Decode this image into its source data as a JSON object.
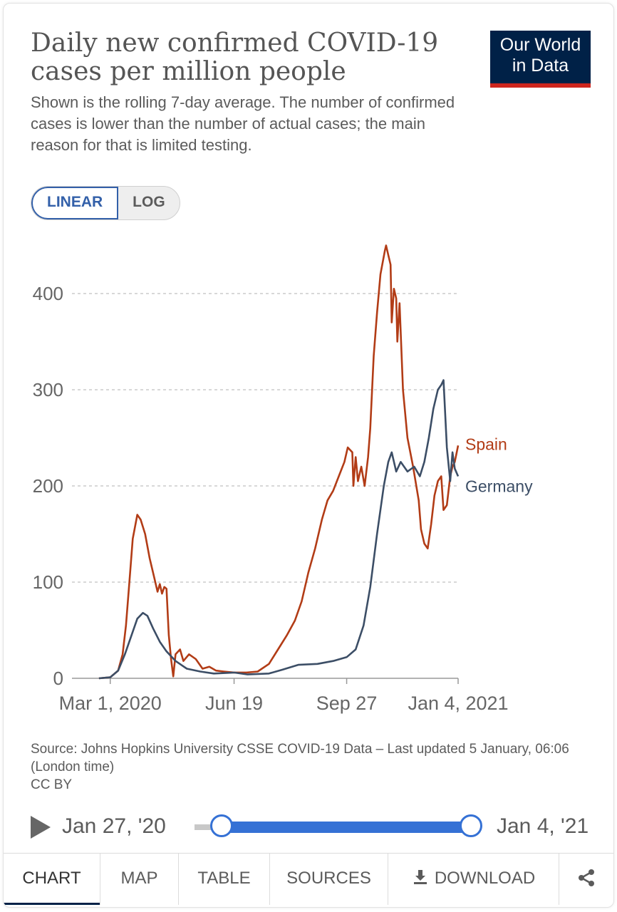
{
  "header": {
    "title": "Daily new confirmed COVID-19 cases per million people",
    "subtitle": "Shown is the rolling 7-day average. The number of confirmed cases is lower than the number of actual cases; the main reason for that is limited testing.",
    "logo_line1": "Our World",
    "logo_line2": "in Data"
  },
  "scale_toggle": {
    "linear": "LINEAR",
    "log": "LOG",
    "selected": "LINEAR"
  },
  "chart_data": {
    "type": "line",
    "title": "Daily new confirmed COVID-19 cases per million people",
    "xlabel": "",
    "ylabel": "",
    "y_scale": "linear",
    "ylim": [
      0,
      450
    ],
    "yticks": [
      0,
      100,
      200,
      300,
      400
    ],
    "ytick_labels": [
      "0",
      "100",
      "200",
      "300",
      "400"
    ],
    "xlim": [
      "2020-01-27",
      "2021-01-04"
    ],
    "xticks": [
      "2020-03-01",
      "2020-06-19",
      "2020-09-27",
      "2021-01-04"
    ],
    "xtick_labels": [
      "Mar 1, 2020",
      "Jun 19",
      "Sep 27",
      "Jan 4, 2021"
    ],
    "grid": "horizontal dashed",
    "legend": "inline labels at right end of lines",
    "series": [
      {
        "name": "Spain",
        "color": "#b23c16",
        "points": [
          [
            "2020-02-20",
            0
          ],
          [
            "2020-03-01",
            1
          ],
          [
            "2020-03-08",
            8
          ],
          [
            "2020-03-12",
            25
          ],
          [
            "2020-03-15",
            55
          ],
          [
            "2020-03-18",
            100
          ],
          [
            "2020-03-21",
            145
          ],
          [
            "2020-03-25",
            170
          ],
          [
            "2020-03-28",
            165
          ],
          [
            "2020-04-01",
            150
          ],
          [
            "2020-04-05",
            125
          ],
          [
            "2020-04-09",
            105
          ],
          [
            "2020-04-12",
            90
          ],
          [
            "2020-04-14",
            98
          ],
          [
            "2020-04-16",
            88
          ],
          [
            "2020-04-18",
            95
          ],
          [
            "2020-04-20",
            93
          ],
          [
            "2020-04-22",
            45
          ],
          [
            "2020-04-24",
            20
          ],
          [
            "2020-04-26",
            2
          ],
          [
            "2020-04-28",
            25
          ],
          [
            "2020-05-02",
            30
          ],
          [
            "2020-05-05",
            18
          ],
          [
            "2020-05-10",
            25
          ],
          [
            "2020-05-16",
            20
          ],
          [
            "2020-05-22",
            10
          ],
          [
            "2020-05-28",
            12
          ],
          [
            "2020-06-03",
            8
          ],
          [
            "2020-06-10",
            7
          ],
          [
            "2020-06-19",
            6
          ],
          [
            "2020-06-30",
            6
          ],
          [
            "2020-07-10",
            7
          ],
          [
            "2020-07-20",
            15
          ],
          [
            "2020-07-28",
            30
          ],
          [
            "2020-08-05",
            45
          ],
          [
            "2020-08-12",
            60
          ],
          [
            "2020-08-18",
            80
          ],
          [
            "2020-08-24",
            110
          ],
          [
            "2020-08-30",
            135
          ],
          [
            "2020-09-05",
            165
          ],
          [
            "2020-09-10",
            185
          ],
          [
            "2020-09-15",
            195
          ],
          [
            "2020-09-20",
            210
          ],
          [
            "2020-09-25",
            225
          ],
          [
            "2020-09-28",
            240
          ],
          [
            "2020-10-02",
            235
          ],
          [
            "2020-10-03",
            200
          ],
          [
            "2020-10-05",
            230
          ],
          [
            "2020-10-07",
            205
          ],
          [
            "2020-10-10",
            220
          ],
          [
            "2020-10-13",
            200
          ],
          [
            "2020-10-16",
            230
          ],
          [
            "2020-10-18",
            260
          ],
          [
            "2020-10-21",
            335
          ],
          [
            "2020-10-24",
            380
          ],
          [
            "2020-10-27",
            420
          ],
          [
            "2020-10-31",
            445
          ],
          [
            "2020-11-01",
            450
          ],
          [
            "2020-11-03",
            440
          ],
          [
            "2020-11-05",
            430
          ],
          [
            "2020-11-06",
            370
          ],
          [
            "2020-11-08",
            405
          ],
          [
            "2020-11-10",
            395
          ],
          [
            "2020-11-11",
            350
          ],
          [
            "2020-11-13",
            390
          ],
          [
            "2020-11-16",
            300
          ],
          [
            "2020-11-20",
            250
          ],
          [
            "2020-11-25",
            220
          ],
          [
            "2020-11-30",
            185
          ],
          [
            "2020-12-02",
            155
          ],
          [
            "2020-12-05",
            140
          ],
          [
            "2020-12-08",
            135
          ],
          [
            "2020-12-11",
            160
          ],
          [
            "2020-12-14",
            190
          ],
          [
            "2020-12-17",
            205
          ],
          [
            "2020-12-20",
            210
          ],
          [
            "2020-12-22",
            175
          ],
          [
            "2020-12-25",
            180
          ],
          [
            "2020-12-28",
            210
          ],
          [
            "2020-12-30",
            220
          ],
          [
            "2021-01-01",
            225
          ],
          [
            "2021-01-04",
            242
          ]
        ]
      },
      {
        "name": "Germany",
        "color": "#3c4e66",
        "points": [
          [
            "2020-02-20",
            0
          ],
          [
            "2020-03-01",
            1
          ],
          [
            "2020-03-08",
            8
          ],
          [
            "2020-03-14",
            25
          ],
          [
            "2020-03-20",
            45
          ],
          [
            "2020-03-25",
            62
          ],
          [
            "2020-03-30",
            68
          ],
          [
            "2020-04-03",
            65
          ],
          [
            "2020-04-08",
            52
          ],
          [
            "2020-04-14",
            38
          ],
          [
            "2020-04-20",
            28
          ],
          [
            "2020-04-28",
            18
          ],
          [
            "2020-05-08",
            10
          ],
          [
            "2020-05-20",
            7
          ],
          [
            "2020-06-01",
            5
          ],
          [
            "2020-06-19",
            6
          ],
          [
            "2020-07-01",
            4
          ],
          [
            "2020-07-20",
            5
          ],
          [
            "2020-08-01",
            9
          ],
          [
            "2020-08-15",
            14
          ],
          [
            "2020-09-01",
            15
          ],
          [
            "2020-09-15",
            18
          ],
          [
            "2020-09-27",
            22
          ],
          [
            "2020-10-05",
            30
          ],
          [
            "2020-10-12",
            55
          ],
          [
            "2020-10-18",
            95
          ],
          [
            "2020-10-24",
            150
          ],
          [
            "2020-10-30",
            200
          ],
          [
            "2020-11-03",
            225
          ],
          [
            "2020-11-06",
            235
          ],
          [
            "2020-11-10",
            215
          ],
          [
            "2020-11-14",
            225
          ],
          [
            "2020-11-20",
            215
          ],
          [
            "2020-11-26",
            220
          ],
          [
            "2020-12-01",
            210
          ],
          [
            "2020-12-05",
            225
          ],
          [
            "2020-12-09",
            250
          ],
          [
            "2020-12-13",
            280
          ],
          [
            "2020-12-17",
            300
          ],
          [
            "2020-12-20",
            305
          ],
          [
            "2020-12-22",
            310
          ],
          [
            "2020-12-25",
            240
          ],
          [
            "2020-12-28",
            205
          ],
          [
            "2020-12-30",
            235
          ],
          [
            "2021-01-01",
            218
          ],
          [
            "2021-01-04",
            210
          ]
        ]
      }
    ]
  },
  "footer": {
    "source": "Source: Johns Hopkins University CSSE COVID-19 Data – Last updated 5 January, 06:06 (London time)",
    "license": "CC BY"
  },
  "timeline": {
    "start_label": "Jan 27, '20",
    "end_label": "Jan 4, '21"
  },
  "tabs": {
    "chart": "CHART",
    "map": "MAP",
    "table": "TABLE",
    "sources": "SOURCES",
    "download": "DOWNLOAD"
  },
  "icons": {
    "play": "play-icon",
    "download": "download-icon",
    "share": "share-icon"
  },
  "colors": {
    "accent": "#3571d5",
    "brand_bg": "#002147",
    "brand_bar": "#ce261e"
  }
}
